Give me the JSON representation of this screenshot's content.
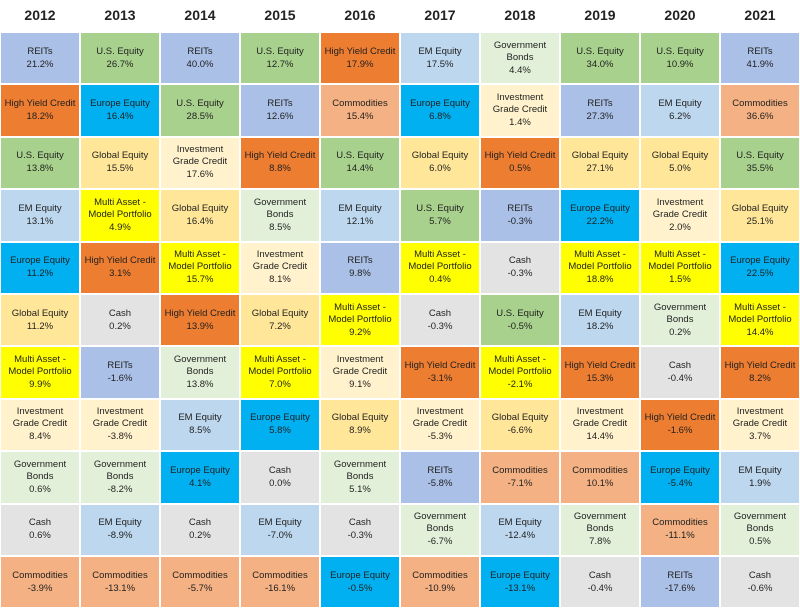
{
  "chart_data": {
    "type": "table",
    "columns": [
      "2012",
      "2013",
      "2014",
      "2015",
      "2016",
      "2017",
      "2018",
      "2019",
      "2020",
      "2021"
    ],
    "colors": {
      "REITs": "#aac0e6",
      "U.S. Equity": "#a9d18e",
      "High Yield Credit": "#ed7d31",
      "EM Equity": "#bdd7ee",
      "Government Bonds": "#e2f0d9",
      "Europe Equity": "#00b0f0",
      "Investment Grade Credit": "#fff2cc",
      "Commodities": "#f4b183",
      "Global Equity": "#ffe699",
      "Multi Asset - Model Portfolio": "#ffff00",
      "Cash": "#e3e3e3"
    },
    "rows": [
      [
        {
          "name": "REITs",
          "value": "21.2%"
        },
        {
          "name": "U.S. Equity",
          "value": "26.7%"
        },
        {
          "name": "REITs",
          "value": "40.0%"
        },
        {
          "name": "U.S. Equity",
          "value": "12.7%"
        },
        {
          "name": "High Yield Credit",
          "value": "17.9%"
        },
        {
          "name": "EM Equity",
          "value": "17.5%"
        },
        {
          "name": "Government\nBonds",
          "value": "4.4%"
        },
        {
          "name": "U.S. Equity",
          "value": "34.0%"
        },
        {
          "name": "U.S. Equity",
          "value": "10.9%"
        },
        {
          "name": "REITs",
          "value": "41.9%"
        }
      ],
      [
        {
          "name": "High Yield Credit",
          "value": "18.2%"
        },
        {
          "name": "Europe Equity",
          "value": "16.4%"
        },
        {
          "name": "U.S. Equity",
          "value": "28.5%"
        },
        {
          "name": "REITs",
          "value": "12.6%"
        },
        {
          "name": "Commodities",
          "value": "15.4%"
        },
        {
          "name": "Europe Equity",
          "value": "6.8%"
        },
        {
          "name": "Investment\nGrade Credit",
          "value": "1.4%"
        },
        {
          "name": "REITs",
          "value": "27.3%"
        },
        {
          "name": "EM Equity",
          "value": "6.2%"
        },
        {
          "name": "Commodities",
          "value": "36.6%"
        }
      ],
      [
        {
          "name": "U.S. Equity",
          "value": "13.8%"
        },
        {
          "name": "Global Equity",
          "value": "15.5%"
        },
        {
          "name": "Investment\nGrade Credit",
          "value": "17.6%"
        },
        {
          "name": "High Yield Credit",
          "value": "8.8%"
        },
        {
          "name": "U.S. Equity",
          "value": "14.4%"
        },
        {
          "name": "Global Equity",
          "value": "6.0%"
        },
        {
          "name": "High Yield Credit",
          "value": "0.5%"
        },
        {
          "name": "Global Equity",
          "value": "27.1%"
        },
        {
          "name": "Global Equity",
          "value": "5.0%"
        },
        {
          "name": "U.S. Equity",
          "value": "35.5%"
        }
      ],
      [
        {
          "name": "EM Equity",
          "value": "13.1%"
        },
        {
          "name": "Multi Asset -\nModel Portfolio",
          "value": "4.9%"
        },
        {
          "name": "Global Equity",
          "value": "16.4%"
        },
        {
          "name": "Government\nBonds",
          "value": "8.5%"
        },
        {
          "name": "EM Equity",
          "value": "12.1%"
        },
        {
          "name": "U.S. Equity",
          "value": "5.7%"
        },
        {
          "name": "REITs",
          "value": "-0.3%"
        },
        {
          "name": "Europe Equity",
          "value": "22.2%"
        },
        {
          "name": "Investment\nGrade Credit",
          "value": "2.0%"
        },
        {
          "name": "Global Equity",
          "value": "25.1%"
        }
      ],
      [
        {
          "name": "Europe Equity",
          "value": "11.2%"
        },
        {
          "name": "High Yield Credit",
          "value": "3.1%"
        },
        {
          "name": "Multi Asset -\nModel Portfolio",
          "value": "15.7%"
        },
        {
          "name": "Investment\nGrade Credit",
          "value": "8.1%"
        },
        {
          "name": "REITs",
          "value": "9.8%"
        },
        {
          "name": "Multi Asset -\nModel Portfolio",
          "value": "0.4%"
        },
        {
          "name": "Cash",
          "value": "-0.3%"
        },
        {
          "name": "Multi Asset -\nModel Portfolio",
          "value": "18.8%"
        },
        {
          "name": "Multi Asset -\nModel Portfolio",
          "value": "1.5%"
        },
        {
          "name": "Europe Equity",
          "value": "22.5%"
        }
      ],
      [
        {
          "name": "Global Equity",
          "value": "11.2%"
        },
        {
          "name": "Cash",
          "value": "0.2%"
        },
        {
          "name": "High Yield Credit",
          "value": "13.9%"
        },
        {
          "name": "Global Equity",
          "value": "7.2%"
        },
        {
          "name": "Multi Asset -\nModel Portfolio",
          "value": "9.2%"
        },
        {
          "name": "Cash",
          "value": "-0.3%"
        },
        {
          "name": "U.S. Equity",
          "value": "-0.5%"
        },
        {
          "name": "EM Equity",
          "value": "18.2%"
        },
        {
          "name": "Government\nBonds",
          "value": "0.2%"
        },
        {
          "name": "Multi Asset -\nModel Portfolio",
          "value": "14.4%"
        }
      ],
      [
        {
          "name": "Multi Asset -\nModel Portfolio",
          "value": "9.9%"
        },
        {
          "name": "REITs",
          "value": "-1.6%"
        },
        {
          "name": "Government\nBonds",
          "value": "13.8%"
        },
        {
          "name": "Multi Asset -\nModel Portfolio",
          "value": "7.0%"
        },
        {
          "name": "Investment\nGrade Credit",
          "value": "9.1%"
        },
        {
          "name": "High Yield Credit",
          "value": "-3.1%"
        },
        {
          "name": "Multi Asset -\nModel Portfolio",
          "value": "-2.1%"
        },
        {
          "name": "High Yield Credit",
          "value": "15.3%"
        },
        {
          "name": "Cash",
          "value": "-0.4%"
        },
        {
          "name": "High Yield Credit",
          "value": "8.2%"
        }
      ],
      [
        {
          "name": "Investment\nGrade Credit",
          "value": "8.4%"
        },
        {
          "name": "Investment\nGrade Credit",
          "value": "-3.8%"
        },
        {
          "name": "EM Equity",
          "value": "8.5%"
        },
        {
          "name": "Europe Equity",
          "value": "5.8%"
        },
        {
          "name": "Global Equity",
          "value": "8.9%"
        },
        {
          "name": "Investment\nGrade Credit",
          "value": "-5.3%"
        },
        {
          "name": "Global Equity",
          "value": "-6.6%"
        },
        {
          "name": "Investment\nGrade Credit",
          "value": "14.4%"
        },
        {
          "name": "High Yield Credit",
          "value": "-1.6%"
        },
        {
          "name": "Investment\nGrade Credit",
          "value": "3.7%"
        }
      ],
      [
        {
          "name": "Government\nBonds",
          "value": "0.6%"
        },
        {
          "name": "Government\nBonds",
          "value": "-8.2%"
        },
        {
          "name": "Europe Equity",
          "value": "4.1%"
        },
        {
          "name": "Cash",
          "value": "0.0%"
        },
        {
          "name": "Government\nBonds",
          "value": "5.1%"
        },
        {
          "name": "REITs",
          "value": "-5.8%"
        },
        {
          "name": "Commodities",
          "value": "-7.1%"
        },
        {
          "name": "Commodities",
          "value": "10.1%"
        },
        {
          "name": "Europe Equity",
          "value": "-5.4%"
        },
        {
          "name": "EM Equity",
          "value": "1.9%"
        }
      ],
      [
        {
          "name": "Cash",
          "value": "0.6%"
        },
        {
          "name": "EM Equity",
          "value": "-8.9%"
        },
        {
          "name": "Cash",
          "value": "0.2%"
        },
        {
          "name": "EM Equity",
          "value": "-7.0%"
        },
        {
          "name": "Cash",
          "value": "-0.3%"
        },
        {
          "name": "Government\nBonds",
          "value": "-6.7%"
        },
        {
          "name": "EM Equity",
          "value": "-12.4%"
        },
        {
          "name": "Government\nBonds",
          "value": "7.8%"
        },
        {
          "name": "Commodities",
          "value": "-11.1%"
        },
        {
          "name": "Government\nBonds",
          "value": "0.5%"
        }
      ],
      [
        {
          "name": "Commodities",
          "value": "-3.9%"
        },
        {
          "name": "Commodities",
          "value": "-13.1%"
        },
        {
          "name": "Commodities",
          "value": "-5.7%"
        },
        {
          "name": "Commodities",
          "value": "-16.1%"
        },
        {
          "name": "Europe Equity",
          "value": "-0.5%"
        },
        {
          "name": "Commodities",
          "value": "-10.9%"
        },
        {
          "name": "Europe Equity",
          "value": "-13.1%"
        },
        {
          "name": "Cash",
          "value": "-0.4%"
        },
        {
          "name": "REITs",
          "value": "-17.6%"
        },
        {
          "name": "Cash",
          "value": "-0.6%"
        }
      ]
    ]
  }
}
